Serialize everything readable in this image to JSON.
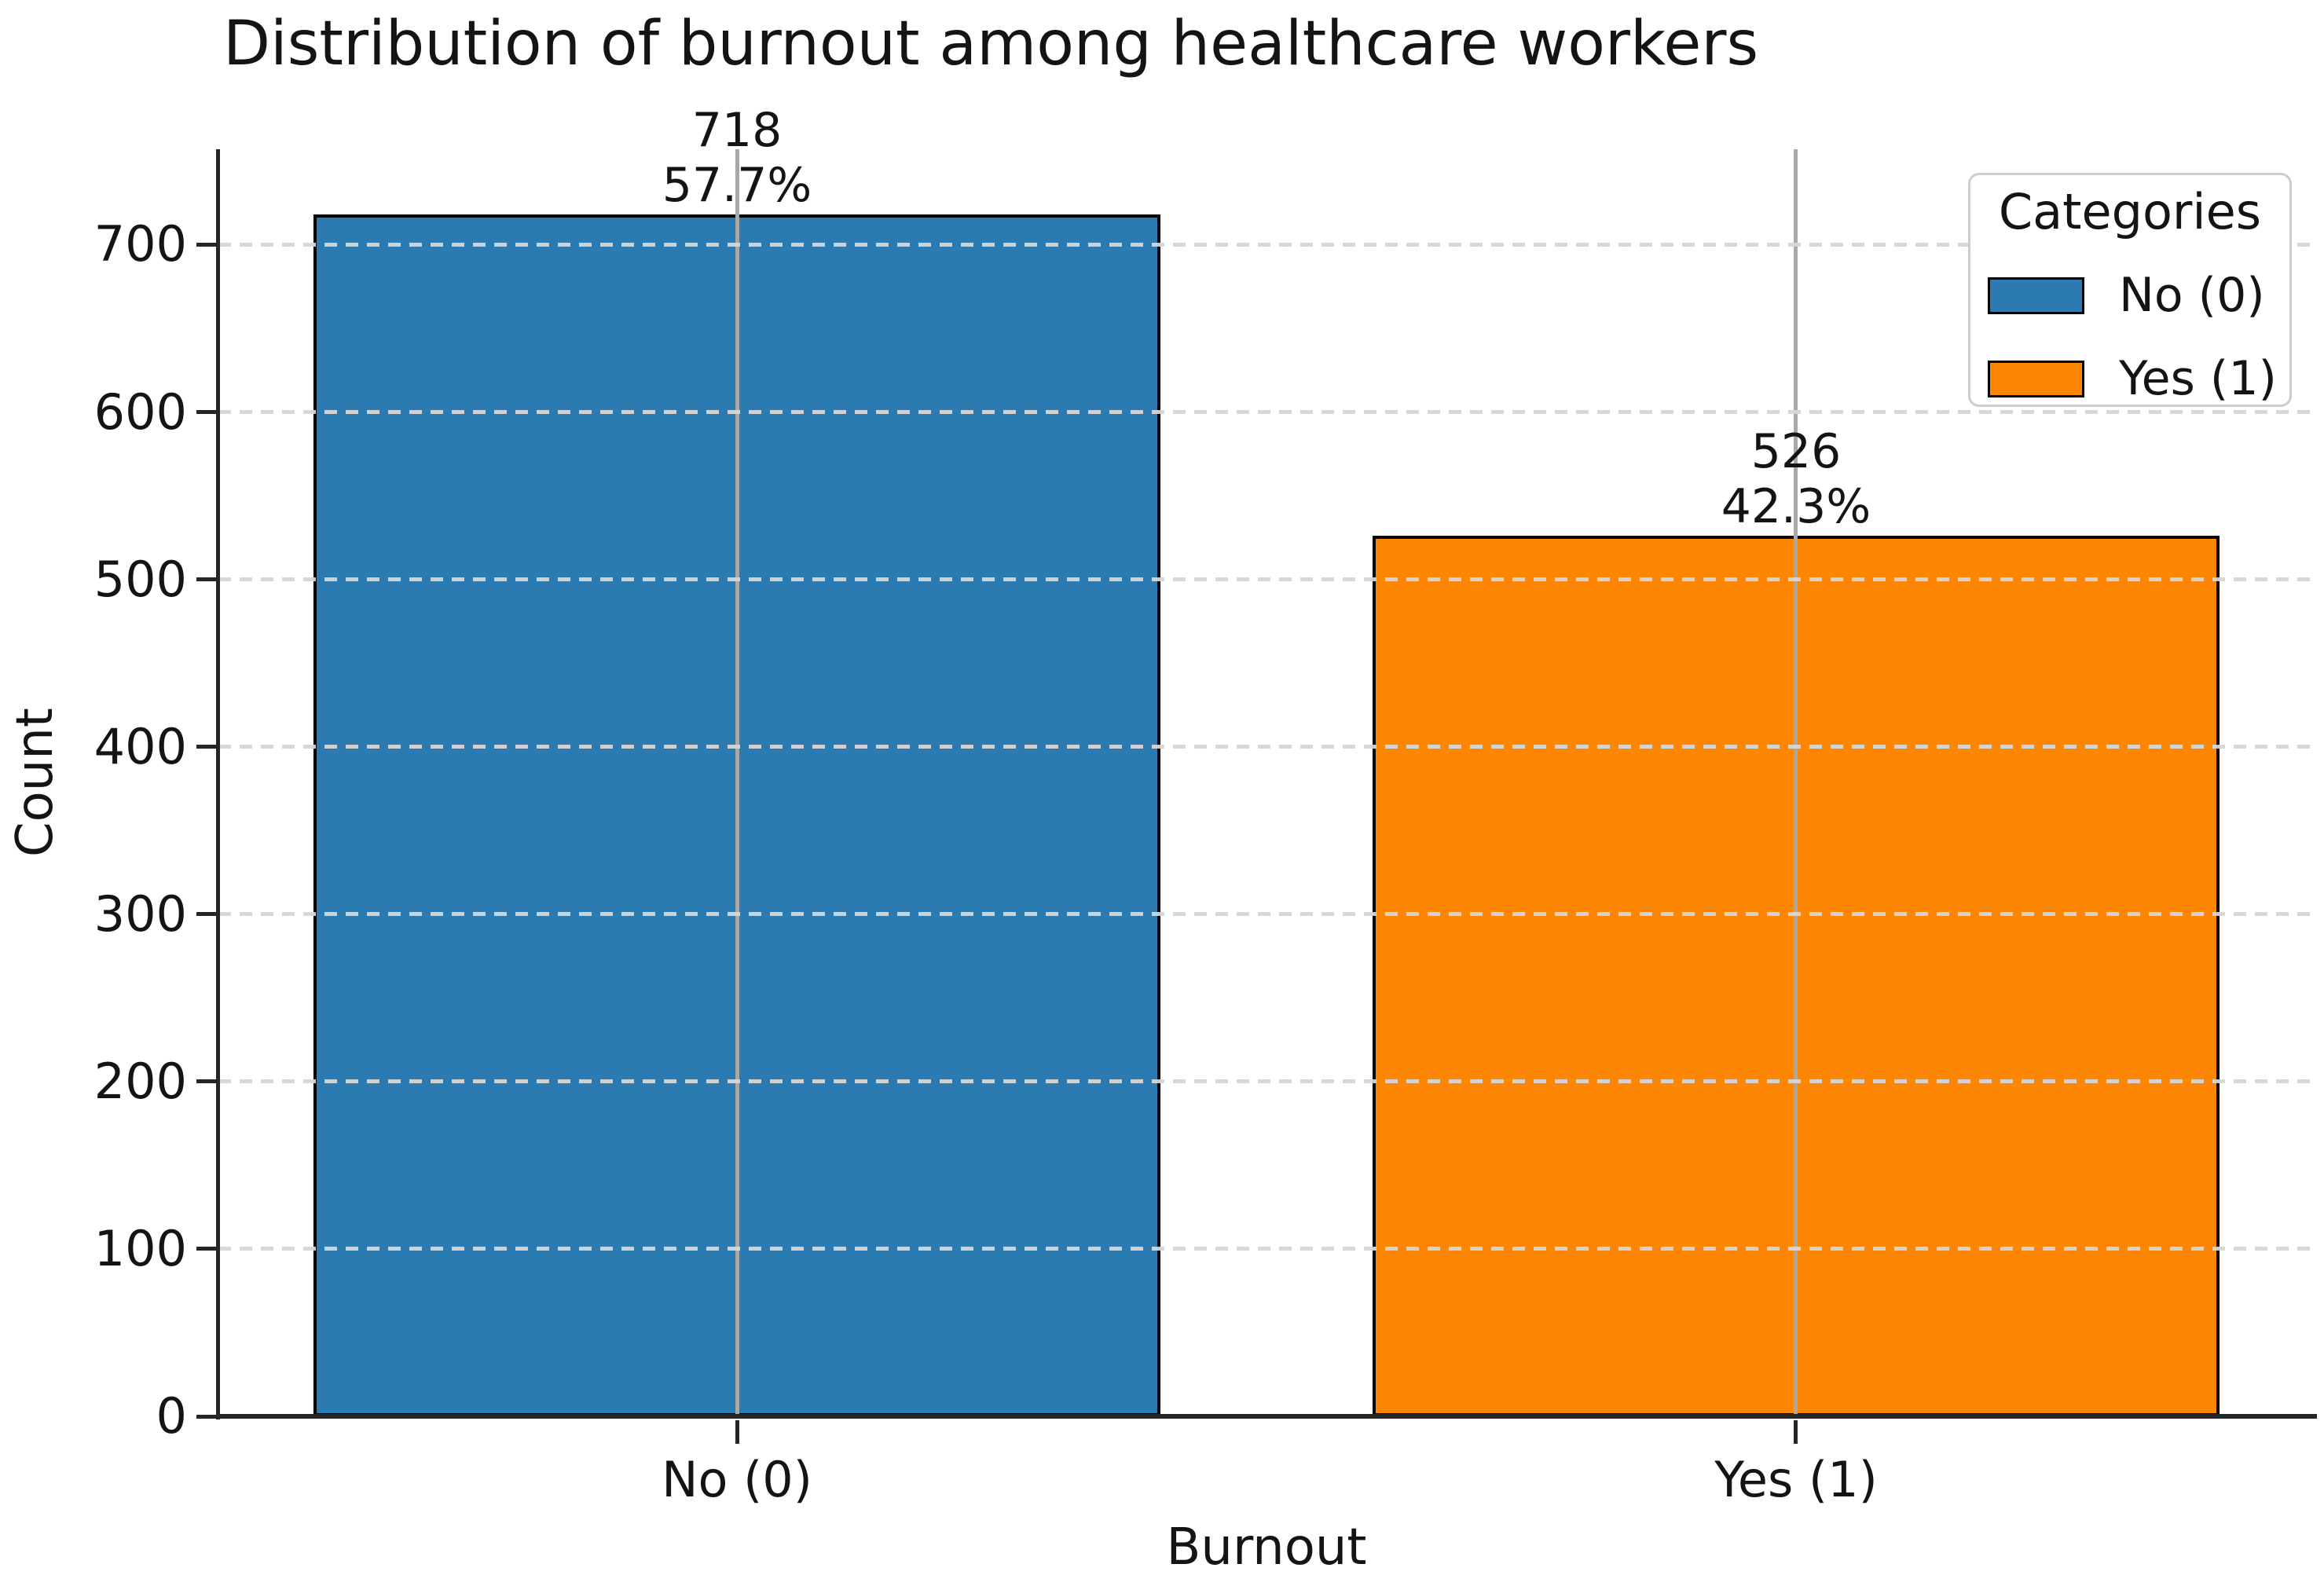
{
  "chart_data": {
    "type": "bar",
    "title": "Distribution of burnout among healthcare workers",
    "xlabel": "Burnout",
    "ylabel": "Count",
    "categories": [
      "No (0)",
      "Yes (1)"
    ],
    "values": [
      718,
      526
    ],
    "value_labels": [
      "718",
      "526"
    ],
    "percent_labels": [
      "57.7%",
      "42.3%"
    ],
    "colors": [
      "#2b7ab1",
      "#fd8603"
    ],
    "bar_edge_color": "#000000",
    "yticks": [
      0,
      100,
      200,
      300,
      400,
      500,
      600,
      700
    ],
    "ylim": [
      0,
      757
    ],
    "grid": {
      "horizontal_style": "dashed",
      "horizontal_color": "#d6d6d6",
      "vertical_style": "solid-at-bar-centers",
      "vertical_color": "#a8a8a8"
    },
    "spine_color": "#262626",
    "legend": {
      "title": "Categories",
      "position": "upper right",
      "entries": [
        {
          "label": "No (0)",
          "color": "#2b7ab1"
        },
        {
          "label": "Yes (1)",
          "color": "#fd8603"
        }
      ]
    }
  }
}
